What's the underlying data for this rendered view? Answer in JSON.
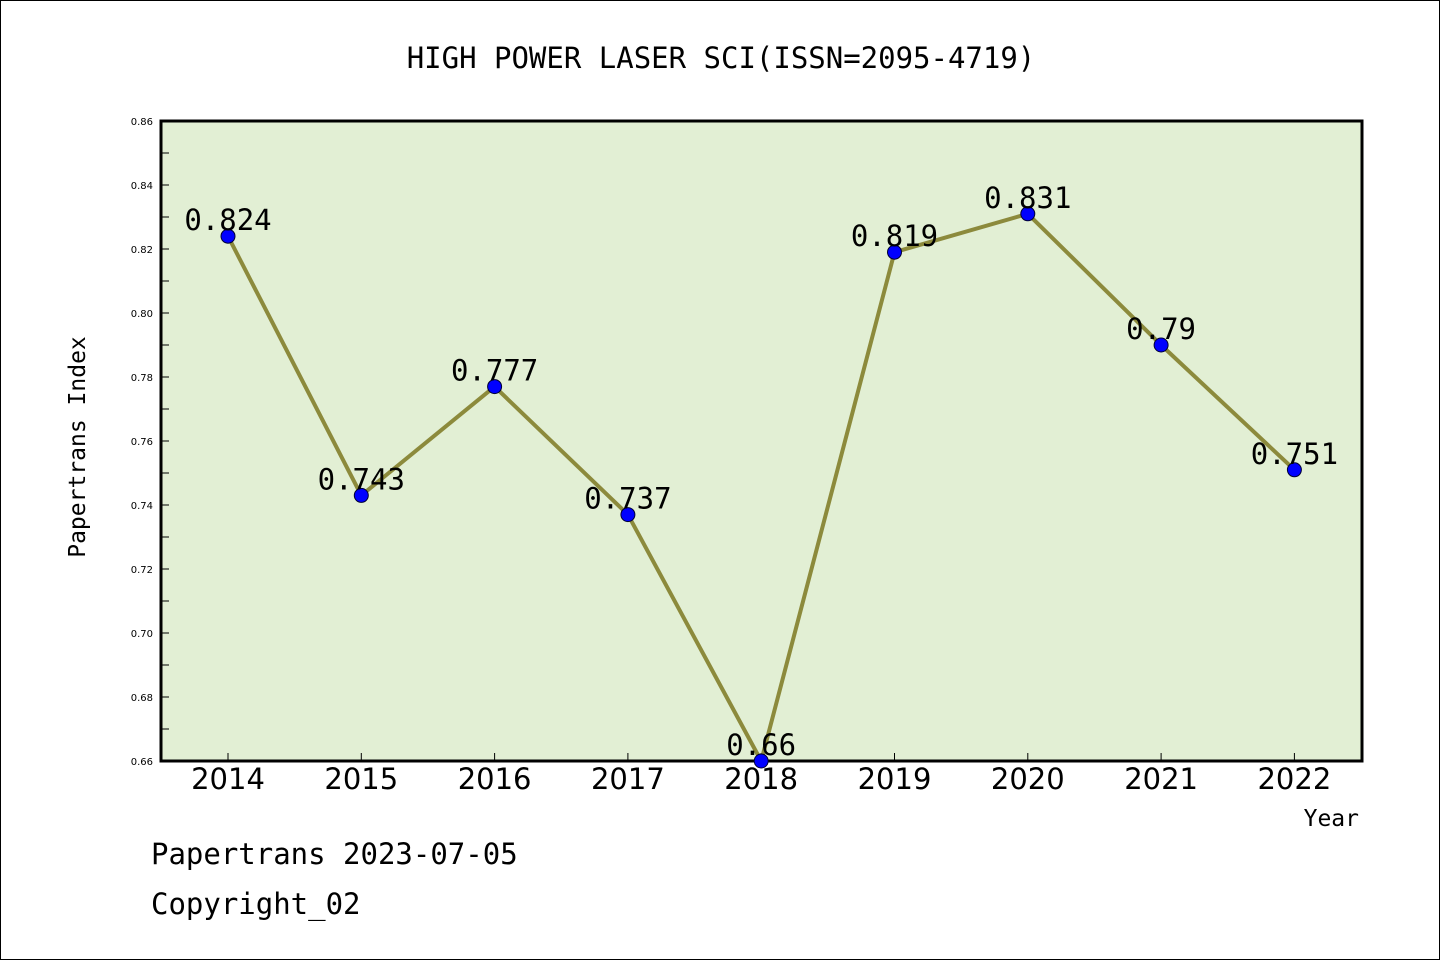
{
  "footer": {
    "date_text": "Papertrans 2023-07-05",
    "copyright_text": "Copyright_02"
  },
  "chart_data": {
    "type": "line",
    "title": "HIGH POWER LASER SCI(ISSN=2095-4719)",
    "xlabel": "Year",
    "ylabel": "Papertrans Index",
    "categories": [
      "2014",
      "2015",
      "2016",
      "2017",
      "2018",
      "2019",
      "2020",
      "2021",
      "2022"
    ],
    "values": [
      0.824,
      0.743,
      0.777,
      0.737,
      0.66,
      0.819,
      0.831,
      0.79,
      0.751
    ],
    "data_labels": [
      "0.824",
      "0.743",
      "0.777",
      "0.737",
      "0.66",
      "0.819",
      "0.831",
      "0.79",
      "0.751"
    ],
    "ylim": [
      0.66,
      0.86
    ],
    "yticks": [
      "0.66",
      "0.68",
      "0.70",
      "0.72",
      "0.74",
      "0.76",
      "0.78",
      "0.80",
      "0.82",
      "0.84",
      "0.86"
    ],
    "grid": false,
    "colors": {
      "plot_background": "#e2efd4",
      "line": "#8c8a3c",
      "marker": "#0000ff"
    }
  }
}
